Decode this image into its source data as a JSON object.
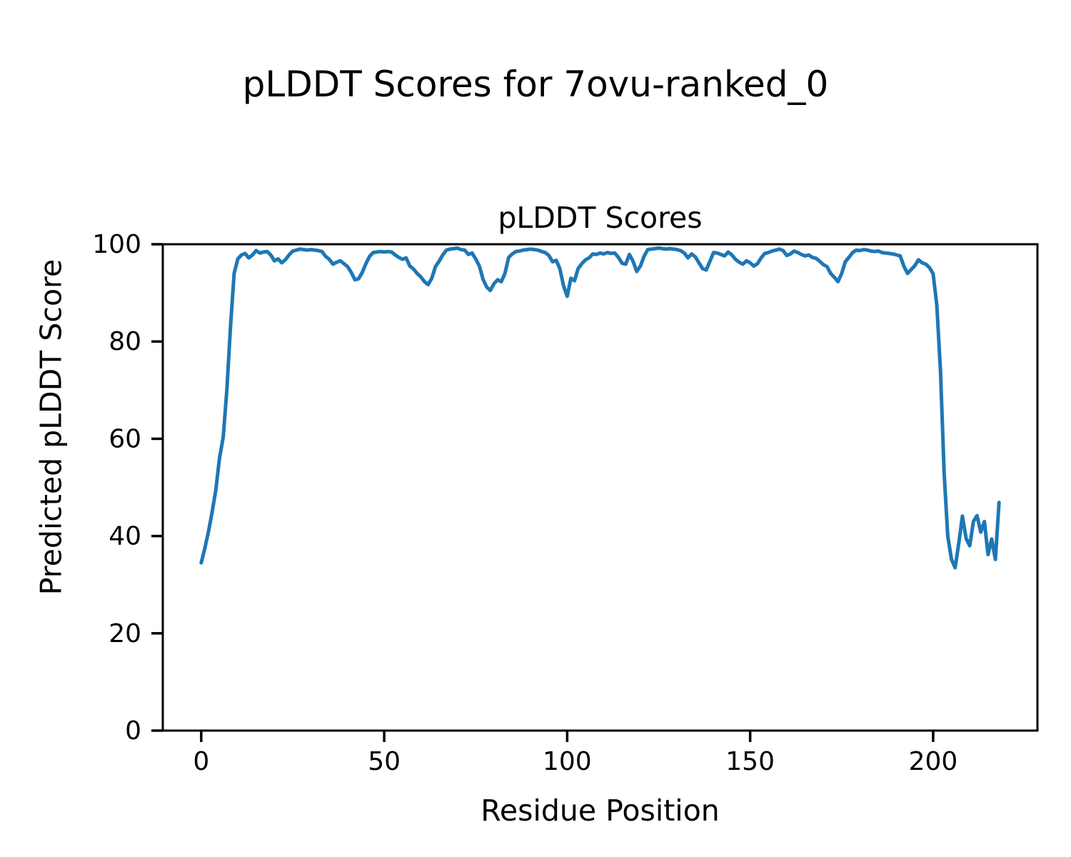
{
  "figure": {
    "title": "pLDDT Scores for 7ovu-ranked_0"
  },
  "chart_data": {
    "type": "line",
    "title": "pLDDT Scores",
    "xlabel": "Residue Position",
    "ylabel": "Predicted pLDDT Score",
    "x_ticks": [
      0,
      50,
      100,
      150,
      200
    ],
    "y_ticks": [
      0,
      20,
      40,
      60,
      80,
      100
    ],
    "xlim": [
      -10.5,
      228.5
    ],
    "ylim": [
      0,
      100
    ],
    "grid": false,
    "legend": "none",
    "line_color": "#1f77b4",
    "axis_color": "#000000",
    "x_start": 0,
    "x_step": 1,
    "series_name": "pLDDT",
    "y_values": [
      34.5,
      37.5,
      41,
      45,
      49.5,
      56,
      60.3,
      70,
      83,
      94,
      97,
      97.8,
      98.1,
      97.2,
      97.8,
      98.7,
      98.2,
      98.4,
      98.5,
      97.8,
      96.6,
      97,
      96.2,
      96.8,
      97.8,
      98.6,
      98.8,
      99,
      98.9,
      98.8,
      98.9,
      98.8,
      98.7,
      98.5,
      97.5,
      96.9,
      95.9,
      96.3,
      96.6,
      96,
      95.4,
      94.2,
      92.7,
      92.9,
      94.2,
      96,
      97.5,
      98.3,
      98.4,
      98.5,
      98.4,
      98.5,
      98.4,
      97.8,
      97.3,
      96.9,
      97.2,
      95.5,
      94.9,
      94,
      93.3,
      92.3,
      91.7,
      93,
      95.4,
      96.5,
      97.8,
      98.8,
      99,
      99.1,
      99.2,
      98.9,
      98.8,
      97.9,
      98.2,
      97,
      95.5,
      92.8,
      91.2,
      90.5,
      91.9,
      92.7,
      92.3,
      94,
      97.3,
      98,
      98.5,
      98.6,
      98.8,
      98.9,
      99,
      98.9,
      98.8,
      98.5,
      98.3,
      97.7,
      96.4,
      96.7,
      95,
      91.5,
      89.3,
      93,
      92.5,
      95,
      96,
      96.8,
      97.2,
      98,
      97.9,
      98.2,
      98,
      98.3,
      98.1,
      98.2,
      97.3,
      96.1,
      95.9,
      97.9,
      96.5,
      94.4,
      95.5,
      97.5,
      98.9,
      99,
      99.1,
      99.2,
      99.1,
      99,
      99.1,
      99,
      98.9,
      98.7,
      98.2,
      97.2,
      98,
      97.4,
      96.2,
      95,
      94.7,
      96.5,
      98.3,
      98.2,
      97.9,
      97.6,
      98.4,
      97.8,
      96.9,
      96.3,
      95.9,
      96.6,
      96.2,
      95.5,
      96,
      97.2,
      98.1,
      98.3,
      98.6,
      98.8,
      99,
      98.7,
      97.7,
      98,
      98.6,
      98.3,
      97.9,
      97.6,
      97.8,
      97.3,
      97.1,
      96.5,
      95.8,
      95.4,
      94,
      93.2,
      92.3,
      94,
      96.4,
      97.3,
      98.3,
      98.8,
      98.7,
      98.9,
      98.8,
      98.6,
      98.5,
      98.6,
      98.3,
      98.2,
      98.1,
      98,
      97.8,
      97.6,
      95.5,
      94,
      94.8,
      95.6,
      96.8,
      96.2,
      95.9,
      95.2,
      93.9,
      87.6,
      74,
      53,
      40,
      35.2,
      33.5,
      38.5,
      44.1,
      39.5,
      38,
      43,
      44.2,
      40.8,
      43,
      36.2,
      39.4,
      35.2,
      46.9
    ]
  }
}
